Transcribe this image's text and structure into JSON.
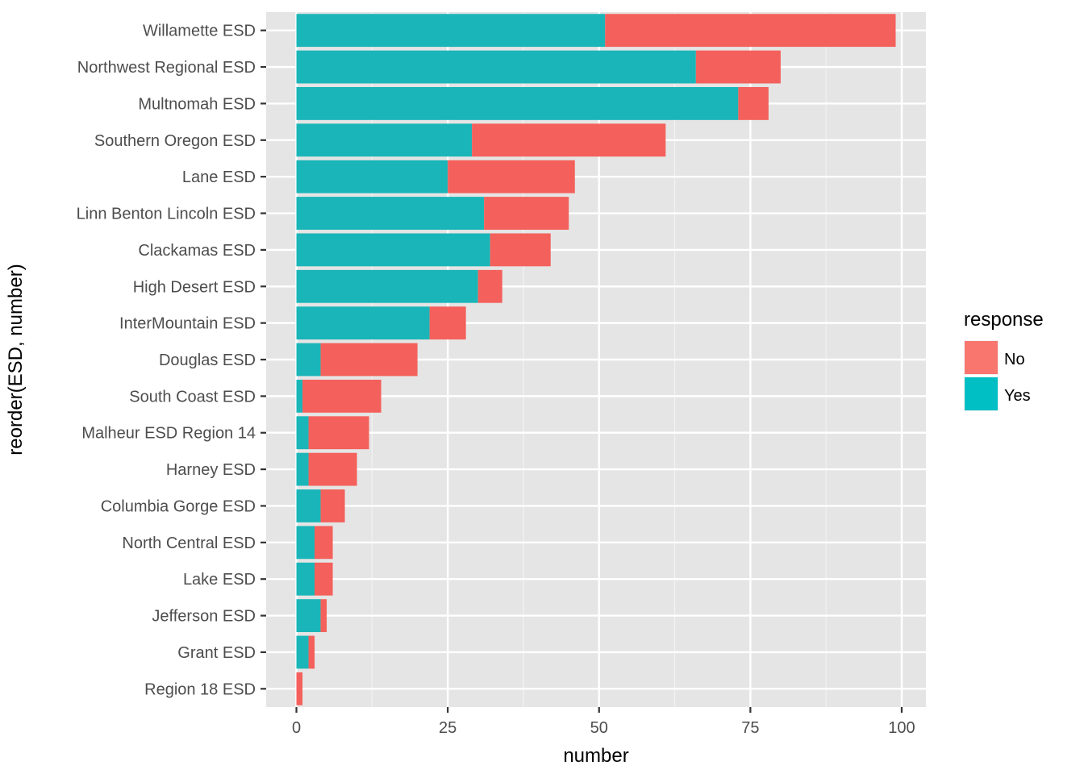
{
  "chart_data": {
    "type": "bar",
    "orientation": "horizontal",
    "stacked": true,
    "title": "",
    "xlabel": "number",
    "ylabel": "reorder(ESD, number)",
    "xlim": [
      -5,
      104
    ],
    "xticks": [
      0,
      25,
      50,
      75,
      100
    ],
    "grid": true,
    "legend": {
      "title": "response",
      "placement": "right",
      "entries": [
        {
          "name": "No",
          "color": "#F8766D"
        },
        {
          "name": "Yes",
          "color": "#00BFC4"
        }
      ]
    },
    "categories": [
      "Willamette ESD",
      "Northwest Regional ESD",
      "Multnomah ESD",
      "Southern Oregon ESD",
      "Lane ESD",
      "Linn Benton Lincoln ESD",
      "Clackamas ESD",
      "High Desert ESD",
      "InterMountain ESD",
      "Douglas ESD",
      "South Coast ESD",
      "Malheur ESD Region 14",
      "Harney ESD",
      "Columbia Gorge ESD",
      "North Central ESD",
      "Lake ESD",
      "Jefferson ESD",
      "Grant ESD",
      "Region 18 ESD"
    ],
    "series": [
      {
        "name": "Yes",
        "color": "#1AB5B8",
        "values": [
          51,
          66,
          73,
          29,
          25,
          31,
          32,
          30,
          22,
          4,
          1,
          2,
          2,
          4,
          3,
          3,
          4,
          2,
          0
        ]
      },
      {
        "name": "No",
        "color": "#F4605B",
        "values": [
          48,
          14,
          5,
          32,
          21,
          14,
          10,
          4,
          6,
          16,
          13,
          10,
          8,
          4,
          3,
          3,
          1,
          1,
          1
        ]
      }
    ]
  }
}
